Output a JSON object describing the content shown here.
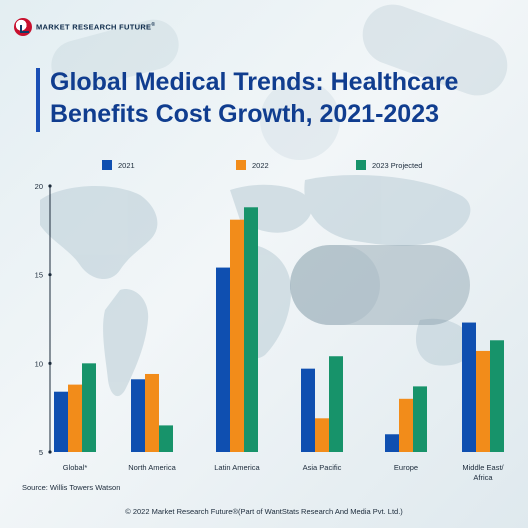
{
  "brand": {
    "name": "MARKET RESEARCH FUTURE",
    "reg": "®"
  },
  "title": "Global Medical Trends: Healthcare Benefits Cost Growth, 2021-2023",
  "title_lines": [
    "Global Medical Trends: Healthcare",
    "Benefits Cost Growth, 2021-2023"
  ],
  "colors": {
    "s2021": "#0f4fb0",
    "s2022": "#f28c1a",
    "s2023": "#17936a",
    "title": "#103d8f"
  },
  "source": "Source: Willis Towers Watson",
  "footer": "© 2022 Market Research Future®(Part of WantStats Research And Media Pvt. Ltd.)",
  "chart_data": {
    "type": "bar",
    "title": "Global Medical Trends: Healthcare Benefits Cost Growth, 2021-2023",
    "xlabel": "",
    "ylabel": "",
    "ylim": [
      5,
      20
    ],
    "yticks": [
      5,
      10,
      15,
      20
    ],
    "grid": false,
    "legend_position": "top",
    "categories": [
      "Global*",
      "North America",
      "Latin America",
      "Asia Pacific",
      "Europe",
      "Middle East/ Africa"
    ],
    "category_lines": [
      [
        "Global*"
      ],
      [
        "North America"
      ],
      [
        "Latin America"
      ],
      [
        "Asia Pacific"
      ],
      [
        "Europe"
      ],
      [
        "Middle East/",
        "Africa"
      ]
    ],
    "series": [
      {
        "name": "2021",
        "values": [
          8.4,
          9.1,
          15.4,
          9.7,
          6.0,
          12.3
        ]
      },
      {
        "name": "2022",
        "values": [
          8.8,
          9.4,
          18.1,
          6.9,
          8.0,
          10.7
        ]
      },
      {
        "name": "2023 Projected",
        "values": [
          10.0,
          6.5,
          18.8,
          10.4,
          8.7,
          11.3
        ]
      }
    ]
  }
}
